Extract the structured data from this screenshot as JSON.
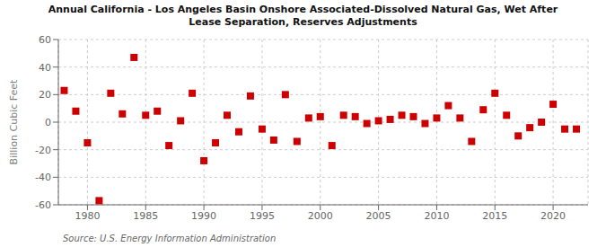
{
  "chart_data": {
    "type": "scatter",
    "title": "Annual California - Los Angeles Basin Onshore Associated-Dissolved Natural Gas, Wet After\nLease Separation, Reserves Adjustments",
    "ylabel": "Billion Cubic Feet",
    "source": "Source: U.S. Energy Information Administration",
    "x": [
      1978,
      1979,
      1980,
      1981,
      1982,
      1983,
      1984,
      1985,
      1986,
      1987,
      1988,
      1989,
      1990,
      1991,
      1992,
      1993,
      1994,
      1995,
      1996,
      1997,
      1998,
      1999,
      2000,
      2001,
      2002,
      2003,
      2004,
      2005,
      2006,
      2007,
      2008,
      2009,
      2010,
      2011,
      2012,
      2013,
      2014,
      2015,
      2016,
      2017,
      2018,
      2019,
      2020,
      2021,
      2022
    ],
    "values": [
      23,
      8,
      -15,
      -57,
      21,
      6,
      47,
      5,
      8,
      -17,
      1,
      21,
      -28,
      -15,
      5,
      -7,
      19,
      -5,
      -13,
      20,
      -14,
      3,
      4,
      -17,
      5,
      4,
      -1,
      1,
      2,
      5,
      4,
      -1,
      3,
      12,
      3,
      -14,
      9,
      21,
      5,
      -10,
      -4,
      0,
      13,
      -5,
      -5
    ],
    "color": "#cc0000",
    "marker": "square",
    "grid": true,
    "xlim": [
      1977.5,
      2023
    ],
    "xticks": [
      1980,
      1985,
      1990,
      1995,
      2000,
      2005,
      2010,
      2015,
      2020
    ],
    "ylim": [
      -60,
      60
    ],
    "yticks": [
      -60,
      -40,
      -20,
      0,
      20,
      40,
      60
    ]
  }
}
